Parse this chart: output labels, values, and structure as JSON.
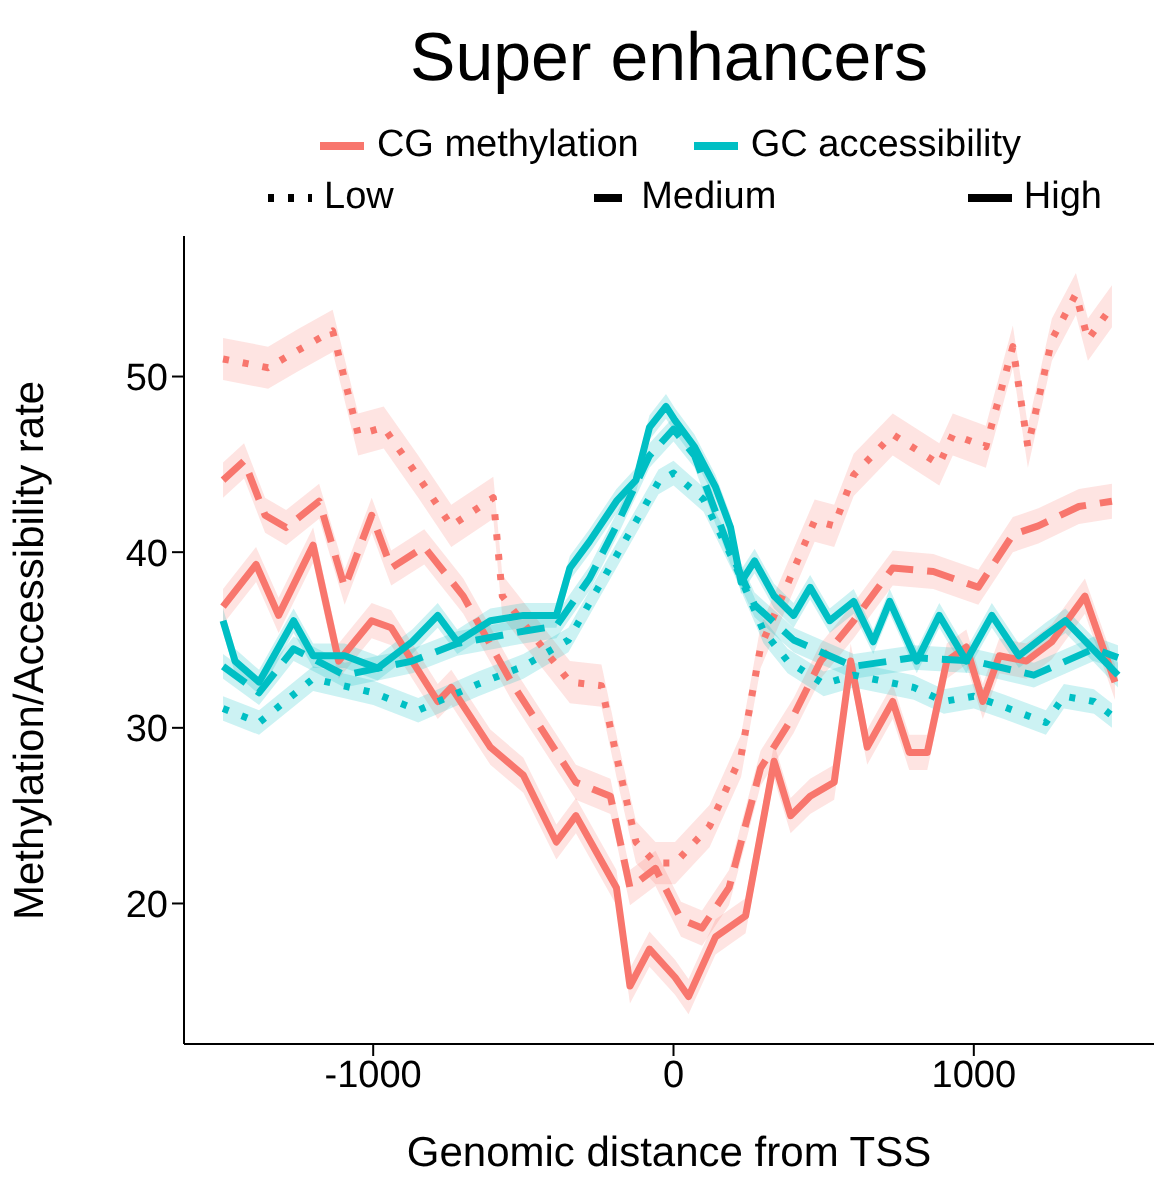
{
  "chart_data": {
    "type": "line",
    "title": "Super enhancers",
    "xlabel": "Genomic distance from TSS",
    "ylabel": "Methylation/Accessibility rate",
    "xlim": [
      -1630,
      1600
    ],
    "xticks": [
      -1000,
      0,
      1000
    ],
    "ylim": [
      12,
      58
    ],
    "yticks": [
      20,
      30,
      40,
      50
    ],
    "legend": "top",
    "annotations": [
      "Low",
      "Medium",
      "High"
    ],
    "series": [
      {
        "color": "#f8766d",
        "line_style": "dotted",
        "x": [
          -1500,
          -1350,
          -1250,
          -1135,
          -1050,
          -965,
          -850,
          -740,
          -600,
          -570,
          -345,
          -240,
          -190,
          -125,
          -60,
          5,
          120,
          225,
          290,
          470,
          535,
          600,
          730,
          885,
          930,
          1040,
          1130,
          1180,
          1260,
          1340,
          1380,
          1460
        ],
        "values": [
          51.0,
          50.5,
          51.5,
          52.6,
          46.7,
          47.1,
          44.3,
          41.5,
          43.1,
          37.5,
          32.6,
          32.4,
          28.4,
          23.5,
          22.3,
          22.3,
          24.4,
          28.4,
          34.6,
          41.8,
          41.5,
          44.4,
          46.7,
          45.0,
          46.7,
          46.0,
          51.7,
          46.0,
          52.1,
          54.7,
          52.1,
          54.0
        ],
        "lower": [
          49.8,
          49.3,
          50.3,
          51.4,
          45.5,
          45.9,
          43.1,
          40.3,
          41.9,
          36.3,
          31.4,
          31.2,
          27.2,
          22.3,
          21.1,
          21.1,
          23.2,
          27.2,
          33.4,
          40.6,
          40.3,
          43.2,
          45.5,
          43.8,
          45.5,
          44.8,
          50.5,
          44.8,
          50.9,
          53.5,
          50.9,
          52.8
        ],
        "upper": [
          52.2,
          51.7,
          52.7,
          53.8,
          47.9,
          48.3,
          45.5,
          42.7,
          44.3,
          38.7,
          33.8,
          33.6,
          29.6,
          24.7,
          23.5,
          23.5,
          25.6,
          29.6,
          35.8,
          43.0,
          42.7,
          45.6,
          47.9,
          46.2,
          47.9,
          47.2,
          52.9,
          47.2,
          53.3,
          55.9,
          53.3,
          55.2
        ]
      },
      {
        "color": "#f8766d",
        "line_style": "dashed",
        "x": [
          -1500,
          -1430,
          -1360,
          -1290,
          -1180,
          -1095,
          -1005,
          -940,
          -830,
          -700,
          -540,
          -325,
          -210,
          -145,
          -60,
          25,
          95,
          185,
          290,
          400,
          490,
          600,
          730,
          865,
          1015,
          1130,
          1215,
          1350,
          1460
        ],
        "values": [
          44.1,
          45.2,
          42.1,
          41.4,
          42.9,
          38.0,
          42.1,
          39.1,
          40.3,
          37.5,
          32.6,
          26.9,
          26.1,
          20.9,
          22.0,
          19.1,
          18.6,
          20.9,
          27.7,
          30.7,
          33.8,
          36.1,
          39.1,
          38.9,
          38.0,
          41.0,
          41.5,
          42.6,
          42.9
        ],
        "lower": [
          43.1,
          44.2,
          41.1,
          40.4,
          41.9,
          37.0,
          41.1,
          38.1,
          39.3,
          36.5,
          31.6,
          25.9,
          25.1,
          19.9,
          21.0,
          18.1,
          17.6,
          19.9,
          26.7,
          29.7,
          32.8,
          35.1,
          38.1,
          37.9,
          37.0,
          40.0,
          40.5,
          41.6,
          41.9
        ],
        "upper": [
          45.1,
          46.2,
          43.1,
          42.4,
          43.9,
          39.0,
          43.1,
          40.1,
          41.3,
          38.5,
          33.6,
          27.9,
          27.1,
          21.9,
          23.0,
          20.1,
          19.6,
          21.9,
          28.7,
          31.7,
          34.8,
          37.1,
          40.1,
          39.9,
          39.0,
          42.0,
          42.5,
          43.6,
          43.9
        ]
      },
      {
        "name": "CG methylation",
        "color": "#f8766d",
        "line_style": "solid",
        "x": [
          -1500,
          -1390,
          -1315,
          -1200,
          -1115,
          -1005,
          -940,
          -870,
          -785,
          -740,
          -610,
          -500,
          -390,
          -325,
          -190,
          -145,
          -80,
          5,
          50,
          140,
          240,
          335,
          390,
          455,
          535,
          590,
          645,
          730,
          785,
          845,
          910,
          975,
          1030,
          1085,
          1175,
          1260,
          1370,
          1470
        ],
        "values": [
          36.9,
          39.3,
          36.4,
          40.4,
          33.8,
          36.1,
          35.7,
          33.8,
          31.5,
          32.3,
          28.9,
          27.3,
          23.5,
          25.0,
          20.9,
          15.3,
          17.4,
          15.8,
          14.7,
          18.1,
          19.3,
          28.1,
          25.0,
          26.1,
          26.9,
          33.8,
          28.9,
          31.5,
          28.6,
          28.6,
          33.8,
          34.6,
          31.5,
          34.1,
          33.8,
          34.9,
          37.5,
          32.6
        ],
        "lower": [
          35.9,
          38.3,
          35.4,
          39.4,
          32.8,
          35.1,
          34.7,
          32.8,
          30.5,
          31.3,
          27.9,
          26.3,
          22.5,
          24.0,
          19.9,
          14.3,
          16.4,
          14.8,
          13.7,
          17.1,
          18.3,
          27.1,
          24.0,
          25.1,
          25.9,
          32.8,
          27.9,
          30.5,
          27.6,
          27.6,
          32.8,
          33.6,
          30.5,
          33.1,
          32.8,
          33.9,
          36.5,
          31.6
        ],
        "upper": [
          37.9,
          40.3,
          37.4,
          41.4,
          34.8,
          37.1,
          36.7,
          34.8,
          32.5,
          33.3,
          29.9,
          28.3,
          24.5,
          26.0,
          21.9,
          16.3,
          18.4,
          16.8,
          15.7,
          19.1,
          20.3,
          29.1,
          26.0,
          27.1,
          27.9,
          34.8,
          29.9,
          32.5,
          29.6,
          29.6,
          34.8,
          35.6,
          32.5,
          35.1,
          34.8,
          35.9,
          38.5,
          33.6
        ]
      },
      {
        "color": "#00bfc4",
        "line_style": "dotted",
        "x": [
          -1500,
          -1380,
          -1200,
          -1000,
          -850,
          -650,
          -500,
          -350,
          -250,
          -150,
          -50,
          0,
          100,
          200,
          300,
          380,
          500,
          600,
          800,
          900,
          1000,
          1100,
          1240,
          1300,
          1400,
          1460
        ],
        "values": [
          31.1,
          30.3,
          32.8,
          32.0,
          31.0,
          32.5,
          33.5,
          35.0,
          38.0,
          41.0,
          44.0,
          44.5,
          43.0,
          39.5,
          35.5,
          33.8,
          32.5,
          33.0,
          32.3,
          31.5,
          31.8,
          31.2,
          30.3,
          31.8,
          31.5,
          30.7
        ],
        "lower": [
          30.4,
          29.6,
          32.1,
          31.3,
          30.3,
          31.8,
          32.8,
          34.3,
          37.3,
          40.3,
          43.3,
          43.8,
          42.3,
          38.8,
          34.8,
          33.1,
          31.8,
          32.3,
          31.6,
          30.8,
          31.1,
          30.5,
          29.6,
          31.1,
          30.8,
          30.0
        ],
        "upper": [
          31.8,
          31.0,
          33.5,
          32.7,
          31.7,
          33.2,
          34.2,
          35.7,
          38.7,
          41.7,
          44.7,
          45.2,
          43.7,
          40.2,
          36.2,
          34.5,
          33.2,
          33.7,
          33.0,
          32.2,
          32.5,
          31.9,
          31.0,
          32.5,
          32.2,
          31.4
        ]
      },
      {
        "color": "#00bfc4",
        "line_style": "dashed",
        "x": [
          -1500,
          -1380,
          -1265,
          -1095,
          -870,
          -720,
          -500,
          -390,
          -280,
          -190,
          -80,
          0,
          70,
          190,
          270,
          400,
          600,
          800,
          1000,
          1200,
          1400,
          1480
        ],
        "values": [
          33.5,
          32.0,
          34.5,
          33.0,
          33.8,
          34.8,
          35.5,
          35.8,
          38.5,
          41.5,
          45.5,
          47.0,
          45.5,
          40.0,
          37.0,
          35.0,
          33.5,
          34.0,
          33.8,
          33.0,
          34.5,
          34.0
        ],
        "lower": [
          32.8,
          31.3,
          33.8,
          32.3,
          33.1,
          34.1,
          34.8,
          35.1,
          37.8,
          40.8,
          44.8,
          46.3,
          44.8,
          39.3,
          36.3,
          34.3,
          32.8,
          33.3,
          33.1,
          32.3,
          33.8,
          33.3
        ],
        "upper": [
          34.2,
          32.7,
          35.2,
          33.7,
          34.5,
          35.5,
          36.2,
          36.5,
          39.2,
          42.2,
          46.2,
          47.7,
          46.2,
          40.7,
          37.7,
          35.7,
          34.2,
          34.7,
          34.5,
          33.7,
          35.2,
          34.7
        ]
      },
      {
        "name": "GC accessibility",
        "color": "#00bfc4",
        "line_style": "solid",
        "x": [
          -1500,
          -1460,
          -1380,
          -1265,
          -1200,
          -1095,
          -985,
          -870,
          -785,
          -720,
          -610,
          -500,
          -390,
          -345,
          -280,
          -190,
          -125,
          -80,
          -25,
          5,
          70,
          140,
          190,
          225,
          270,
          335,
          400,
          455,
          520,
          600,
          665,
          720,
          810,
          885,
          975,
          1060,
          1150,
          1240,
          1305,
          1390,
          1480
        ],
        "values": [
          36.1,
          33.8,
          32.6,
          36.1,
          34.1,
          34.1,
          33.4,
          34.9,
          36.4,
          34.9,
          36.1,
          36.4,
          36.4,
          39.1,
          40.6,
          42.9,
          44.1,
          47.1,
          48.3,
          47.5,
          46.0,
          43.7,
          41.4,
          38.3,
          39.5,
          37.5,
          36.4,
          38.0,
          36.1,
          37.2,
          34.9,
          37.2,
          33.8,
          36.4,
          33.8,
          36.4,
          34.1,
          35.3,
          36.1,
          34.6,
          33.0
        ],
        "lower": [
          35.4,
          33.1,
          31.9,
          35.4,
          33.4,
          33.4,
          32.7,
          34.2,
          35.7,
          34.2,
          35.4,
          35.7,
          35.7,
          38.4,
          39.9,
          42.2,
          43.4,
          46.4,
          47.6,
          46.8,
          45.3,
          43.0,
          40.7,
          37.6,
          38.8,
          36.8,
          35.7,
          37.3,
          35.4,
          36.5,
          34.2,
          36.5,
          33.1,
          35.7,
          33.1,
          35.7,
          33.4,
          34.6,
          35.4,
          33.9,
          32.3
        ],
        "upper": [
          36.8,
          34.5,
          33.3,
          36.8,
          34.8,
          34.8,
          34.1,
          35.6,
          37.1,
          35.6,
          36.8,
          37.1,
          37.1,
          39.8,
          41.3,
          43.6,
          44.8,
          47.8,
          49.0,
          48.2,
          46.7,
          44.4,
          42.1,
          39.0,
          40.2,
          38.2,
          37.1,
          38.7,
          36.8,
          37.9,
          35.6,
          37.9,
          34.5,
          37.1,
          34.5,
          37.1,
          34.8,
          36.0,
          36.8,
          35.3,
          33.7
        ]
      }
    ]
  }
}
